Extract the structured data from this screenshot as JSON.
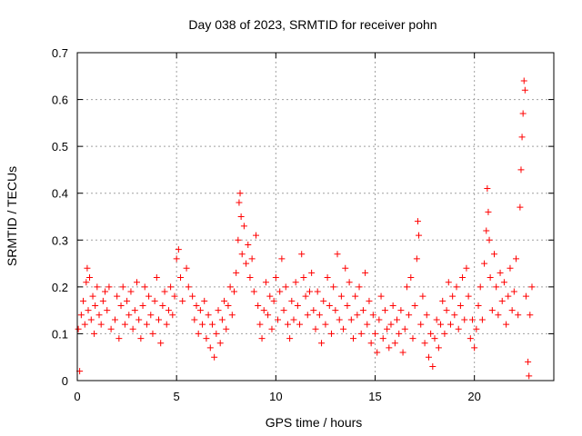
{
  "chart_data": {
    "type": "scatter",
    "title": "Day 038 of 2023, SRMTID for receiver pohn",
    "xlabel": "GPS time / hours",
    "ylabel": "SRMTID / TECUs",
    "xlim": [
      0,
      24
    ],
    "ylim": [
      0,
      0.7
    ],
    "xticks": [
      0,
      5,
      10,
      15,
      20
    ],
    "xtick_labels": [
      "0",
      "5",
      "10",
      "15",
      "20"
    ],
    "yticks": [
      0,
      0.1,
      0.2,
      0.3,
      0.4,
      0.5,
      0.6,
      0.7
    ],
    "ytick_labels": [
      "0",
      "0.1",
      "0.2",
      "0.3",
      "0.4",
      "0.5",
      "0.6",
      "0.7"
    ],
    "grid": true,
    "marker": "plus",
    "color": "#ff0000",
    "series": [
      {
        "name": "SRMTID",
        "points": [
          [
            0.05,
            0.11
          ],
          [
            0.12,
            0.02
          ],
          [
            0.2,
            0.14
          ],
          [
            0.3,
            0.17
          ],
          [
            0.38,
            0.12
          ],
          [
            0.45,
            0.21
          ],
          [
            0.5,
            0.24
          ],
          [
            0.55,
            0.15
          ],
          [
            0.62,
            0.22
          ],
          [
            0.7,
            0.13
          ],
          [
            0.78,
            0.18
          ],
          [
            0.85,
            0.1
          ],
          [
            0.9,
            0.16
          ],
          [
            1.0,
            0.2
          ],
          [
            1.1,
            0.14
          ],
          [
            1.2,
            0.12
          ],
          [
            1.3,
            0.17
          ],
          [
            1.4,
            0.19
          ],
          [
            1.5,
            0.15
          ],
          [
            1.6,
            0.2
          ],
          [
            1.7,
            0.11
          ],
          [
            1.9,
            0.13
          ],
          [
            2.0,
            0.18
          ],
          [
            2.1,
            0.09
          ],
          [
            2.2,
            0.16
          ],
          [
            2.3,
            0.2
          ],
          [
            2.4,
            0.12
          ],
          [
            2.5,
            0.17
          ],
          [
            2.6,
            0.14
          ],
          [
            2.7,
            0.19
          ],
          [
            2.8,
            0.11
          ],
          [
            2.9,
            0.15
          ],
          [
            3.0,
            0.21
          ],
          [
            3.1,
            0.13
          ],
          [
            3.2,
            0.09
          ],
          [
            3.3,
            0.16
          ],
          [
            3.4,
            0.2
          ],
          [
            3.5,
            0.12
          ],
          [
            3.6,
            0.18
          ],
          [
            3.7,
            0.14
          ],
          [
            3.8,
            0.1
          ],
          [
            3.9,
            0.17
          ],
          [
            4.0,
            0.22
          ],
          [
            4.1,
            0.13
          ],
          [
            4.2,
            0.08
          ],
          [
            4.3,
            0.16
          ],
          [
            4.4,
            0.19
          ],
          [
            4.5,
            0.12
          ],
          [
            4.6,
            0.15
          ],
          [
            4.7,
            0.2
          ],
          [
            4.8,
            0.14
          ],
          [
            4.9,
            0.18
          ],
          [
            5.0,
            0.26
          ],
          [
            5.1,
            0.28
          ],
          [
            5.2,
            0.22
          ],
          [
            5.3,
            0.17
          ],
          [
            5.5,
            0.24
          ],
          [
            5.6,
            0.2
          ],
          [
            5.8,
            0.18
          ],
          [
            5.9,
            0.13
          ],
          [
            6.0,
            0.16
          ],
          [
            6.1,
            0.1
          ],
          [
            6.2,
            0.15
          ],
          [
            6.3,
            0.12
          ],
          [
            6.4,
            0.17
          ],
          [
            6.5,
            0.09
          ],
          [
            6.6,
            0.14
          ],
          [
            6.7,
            0.07
          ],
          [
            6.8,
            0.12
          ],
          [
            6.9,
            0.05
          ],
          [
            7.0,
            0.1
          ],
          [
            7.1,
            0.15
          ],
          [
            7.2,
            0.08
          ],
          [
            7.3,
            0.13
          ],
          [
            7.4,
            0.17
          ],
          [
            7.5,
            0.11
          ],
          [
            7.6,
            0.16
          ],
          [
            7.7,
            0.2
          ],
          [
            7.8,
            0.14
          ],
          [
            7.9,
            0.19
          ],
          [
            8.0,
            0.23
          ],
          [
            8.1,
            0.3
          ],
          [
            8.15,
            0.38
          ],
          [
            8.2,
            0.4
          ],
          [
            8.25,
            0.35
          ],
          [
            8.3,
            0.27
          ],
          [
            8.4,
            0.33
          ],
          [
            8.5,
            0.25
          ],
          [
            8.6,
            0.29
          ],
          [
            8.7,
            0.22
          ],
          [
            8.8,
            0.26
          ],
          [
            8.9,
            0.19
          ],
          [
            9.0,
            0.31
          ],
          [
            9.1,
            0.16
          ],
          [
            9.2,
            0.12
          ],
          [
            9.3,
            0.09
          ],
          [
            9.4,
            0.15
          ],
          [
            9.5,
            0.21
          ],
          [
            9.6,
            0.14
          ],
          [
            9.7,
            0.18
          ],
          [
            9.8,
            0.11
          ],
          [
            9.9,
            0.17
          ],
          [
            10.0,
            0.22
          ],
          [
            10.1,
            0.13
          ],
          [
            10.2,
            0.19
          ],
          [
            10.3,
            0.26
          ],
          [
            10.4,
            0.15
          ],
          [
            10.5,
            0.2
          ],
          [
            10.6,
            0.12
          ],
          [
            10.7,
            0.09
          ],
          [
            10.8,
            0.17
          ],
          [
            10.9,
            0.13
          ],
          [
            11.0,
            0.21
          ],
          [
            11.1,
            0.16
          ],
          [
            11.2,
            0.12
          ],
          [
            11.3,
            0.27
          ],
          [
            11.4,
            0.22
          ],
          [
            11.5,
            0.18
          ],
          [
            11.6,
            0.14
          ],
          [
            11.7,
            0.19
          ],
          [
            11.8,
            0.23
          ],
          [
            11.9,
            0.15
          ],
          [
            12.0,
            0.11
          ],
          [
            12.1,
            0.19
          ],
          [
            12.2,
            0.14
          ],
          [
            12.3,
            0.08
          ],
          [
            12.4,
            0.17
          ],
          [
            12.5,
            0.12
          ],
          [
            12.6,
            0.22
          ],
          [
            12.7,
            0.16
          ],
          [
            12.8,
            0.1
          ],
          [
            12.9,
            0.2
          ],
          [
            13.0,
            0.15
          ],
          [
            13.1,
            0.27
          ],
          [
            13.2,
            0.13
          ],
          [
            13.3,
            0.18
          ],
          [
            13.4,
            0.11
          ],
          [
            13.5,
            0.24
          ],
          [
            13.6,
            0.16
          ],
          [
            13.7,
            0.21
          ],
          [
            13.8,
            0.13
          ],
          [
            13.9,
            0.09
          ],
          [
            14.0,
            0.18
          ],
          [
            14.1,
            0.14
          ],
          [
            14.2,
            0.2
          ],
          [
            14.3,
            0.1
          ],
          [
            14.4,
            0.15
          ],
          [
            14.5,
            0.23
          ],
          [
            14.6,
            0.12
          ],
          [
            14.7,
            0.17
          ],
          [
            14.8,
            0.08
          ],
          [
            14.9,
            0.14
          ],
          [
            15.0,
            0.1
          ],
          [
            15.1,
            0.06
          ],
          [
            15.2,
            0.13
          ],
          [
            15.3,
            0.18
          ],
          [
            15.4,
            0.09
          ],
          [
            15.5,
            0.15
          ],
          [
            15.6,
            0.11
          ],
          [
            15.7,
            0.07
          ],
          [
            15.8,
            0.12
          ],
          [
            15.9,
            0.16
          ],
          [
            16.0,
            0.08
          ],
          [
            16.1,
            0.13
          ],
          [
            16.2,
            0.1
          ],
          [
            16.3,
            0.15
          ],
          [
            16.4,
            0.06
          ],
          [
            16.5,
            0.11
          ],
          [
            16.6,
            0.2
          ],
          [
            16.7,
            0.14
          ],
          [
            16.8,
            0.22
          ],
          [
            16.9,
            0.09
          ],
          [
            17.0,
            0.16
          ],
          [
            17.1,
            0.26
          ],
          [
            17.15,
            0.34
          ],
          [
            17.2,
            0.31
          ],
          [
            17.3,
            0.12
          ],
          [
            17.4,
            0.18
          ],
          [
            17.5,
            0.08
          ],
          [
            17.6,
            0.14
          ],
          [
            17.7,
            0.05
          ],
          [
            17.8,
            0.1
          ],
          [
            17.9,
            0.03
          ],
          [
            18.0,
            0.09
          ],
          [
            18.1,
            0.13
          ],
          [
            18.2,
            0.07
          ],
          [
            18.3,
            0.12
          ],
          [
            18.4,
            0.17
          ],
          [
            18.5,
            0.1
          ],
          [
            18.6,
            0.15
          ],
          [
            18.7,
            0.21
          ],
          [
            18.8,
            0.12
          ],
          [
            18.9,
            0.18
          ],
          [
            19.0,
            0.14
          ],
          [
            19.1,
            0.2
          ],
          [
            19.2,
            0.11
          ],
          [
            19.3,
            0.16
          ],
          [
            19.4,
            0.22
          ],
          [
            19.5,
            0.13
          ],
          [
            19.6,
            0.24
          ],
          [
            19.7,
            0.18
          ],
          [
            19.8,
            0.09
          ],
          [
            19.9,
            0.13
          ],
          [
            20.0,
            0.07
          ],
          [
            20.1,
            0.11
          ],
          [
            20.2,
            0.16
          ],
          [
            20.3,
            0.2
          ],
          [
            20.4,
            0.13
          ],
          [
            20.5,
            0.25
          ],
          [
            20.6,
            0.32
          ],
          [
            20.65,
            0.41
          ],
          [
            20.7,
            0.36
          ],
          [
            20.75,
            0.3
          ],
          [
            20.8,
            0.22
          ],
          [
            20.9,
            0.15
          ],
          [
            21.0,
            0.27
          ],
          [
            21.1,
            0.2
          ],
          [
            21.2,
            0.14
          ],
          [
            21.3,
            0.23
          ],
          [
            21.4,
            0.17
          ],
          [
            21.5,
            0.21
          ],
          [
            21.6,
            0.12
          ],
          [
            21.7,
            0.18
          ],
          [
            21.8,
            0.24
          ],
          [
            21.9,
            0.15
          ],
          [
            22.0,
            0.19
          ],
          [
            22.1,
            0.26
          ],
          [
            22.2,
            0.14
          ],
          [
            22.3,
            0.37
          ],
          [
            22.35,
            0.45
          ],
          [
            22.4,
            0.52
          ],
          [
            22.45,
            0.57
          ],
          [
            22.5,
            0.64
          ],
          [
            22.55,
            0.62
          ],
          [
            22.6,
            0.18
          ],
          [
            22.7,
            0.04
          ],
          [
            22.75,
            0.01
          ],
          [
            22.8,
            0.14
          ],
          [
            22.9,
            0.2
          ]
        ]
      }
    ]
  }
}
